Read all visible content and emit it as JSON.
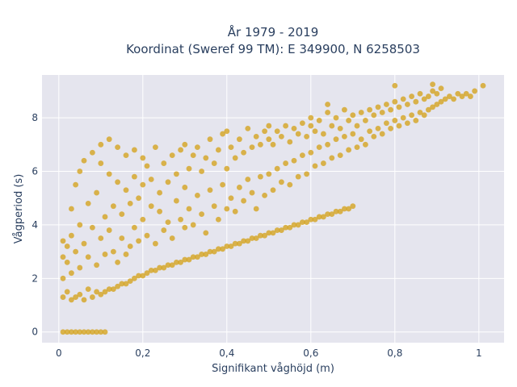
{
  "chart_data": {
    "type": "scatter",
    "title": [
      "År 1979 - 2019",
      "Koordinat (Sweref 99 TM): E 349900, N 6258503"
    ],
    "xlabel": "Signifikant våghöjd (m)",
    "ylabel": "Vågperiod (s)",
    "xlim": [
      -0.04,
      1.06
    ],
    "ylim": [
      -0.4,
      9.6
    ],
    "xticks": [
      0,
      0.2,
      0.4,
      0.6,
      0.8,
      1
    ],
    "xtick_labels": [
      "0",
      "0,2",
      "0,4",
      "0,6",
      "0,8",
      "1"
    ],
    "yticks": [
      0,
      2,
      4,
      6,
      8
    ],
    "ytick_labels": [
      "0",
      "2",
      "4",
      "6",
      "8"
    ],
    "grid": true,
    "point_color": "#D4A421",
    "plot_bg_color": "#E5E5EE",
    "series": [
      {
        "values": [
          [
            0.01,
            0.0
          ],
          [
            0.02,
            0.0
          ],
          [
            0.03,
            0.0
          ],
          [
            0.04,
            0.0
          ],
          [
            0.05,
            0.0
          ],
          [
            0.06,
            0.0
          ],
          [
            0.07,
            0.0
          ],
          [
            0.08,
            0.0
          ],
          [
            0.09,
            0.0
          ],
          [
            0.1,
            0.0
          ],
          [
            0.11,
            0.0
          ],
          [
            0.01,
            1.3
          ],
          [
            0.01,
            2.0
          ],
          [
            0.01,
            2.8
          ],
          [
            0.01,
            3.4
          ],
          [
            0.02,
            1.5
          ],
          [
            0.02,
            2.6
          ],
          [
            0.02,
            3.2
          ],
          [
            0.03,
            1.2
          ],
          [
            0.03,
            2.2
          ],
          [
            0.03,
            3.6
          ],
          [
            0.03,
            4.6
          ],
          [
            0.04,
            1.3
          ],
          [
            0.04,
            3.0
          ],
          [
            0.04,
            5.5
          ],
          [
            0.05,
            1.4
          ],
          [
            0.05,
            2.4
          ],
          [
            0.05,
            4.0
          ],
          [
            0.05,
            6.0
          ],
          [
            0.06,
            1.2
          ],
          [
            0.06,
            3.3
          ],
          [
            0.06,
            6.4
          ],
          [
            0.07,
            1.6
          ],
          [
            0.07,
            2.8
          ],
          [
            0.07,
            4.8
          ],
          [
            0.08,
            1.3
          ],
          [
            0.08,
            3.9
          ],
          [
            0.08,
            6.7
          ],
          [
            0.09,
            1.5
          ],
          [
            0.09,
            2.5
          ],
          [
            0.09,
            5.2
          ],
          [
            0.1,
            1.4
          ],
          [
            0.1,
            3.5
          ],
          [
            0.1,
            6.3
          ],
          [
            0.1,
            7.0
          ],
          [
            0.11,
            1.5
          ],
          [
            0.11,
            2.9
          ],
          [
            0.11,
            4.3
          ],
          [
            0.12,
            1.6
          ],
          [
            0.12,
            3.8
          ],
          [
            0.12,
            5.9
          ],
          [
            0.12,
            7.2
          ],
          [
            0.13,
            1.6
          ],
          [
            0.13,
            3.0
          ],
          [
            0.13,
            4.7
          ],
          [
            0.14,
            1.7
          ],
          [
            0.14,
            2.6
          ],
          [
            0.14,
            5.6
          ],
          [
            0.14,
            6.9
          ],
          [
            0.15,
            1.8
          ],
          [
            0.15,
            3.5
          ],
          [
            0.15,
            4.4
          ],
          [
            0.16,
            1.8
          ],
          [
            0.16,
            2.9
          ],
          [
            0.16,
            5.3
          ],
          [
            0.16,
            6.6
          ],
          [
            0.17,
            1.9
          ],
          [
            0.17,
            3.2
          ],
          [
            0.17,
            4.8
          ],
          [
            0.18,
            2.0
          ],
          [
            0.18,
            3.9
          ],
          [
            0.18,
            5.8
          ],
          [
            0.18,
            6.8
          ],
          [
            0.19,
            2.1
          ],
          [
            0.19,
            3.4
          ],
          [
            0.19,
            5.0
          ],
          [
            0.2,
            2.1
          ],
          [
            0.2,
            4.2
          ],
          [
            0.2,
            5.5
          ],
          [
            0.2,
            6.5
          ],
          [
            0.21,
            2.2
          ],
          [
            0.21,
            3.6
          ],
          [
            0.21,
            6.2
          ],
          [
            0.22,
            2.3
          ],
          [
            0.22,
            4.7
          ],
          [
            0.22,
            5.7
          ],
          [
            0.23,
            2.3
          ],
          [
            0.23,
            3.3
          ],
          [
            0.23,
            6.9
          ],
          [
            0.24,
            2.4
          ],
          [
            0.24,
            4.5
          ],
          [
            0.24,
            5.2
          ],
          [
            0.25,
            2.4
          ],
          [
            0.25,
            3.8
          ],
          [
            0.25,
            6.3
          ],
          [
            0.26,
            2.5
          ],
          [
            0.26,
            4.1
          ],
          [
            0.26,
            5.6
          ],
          [
            0.27,
            2.5
          ],
          [
            0.27,
            3.5
          ],
          [
            0.27,
            6.6
          ],
          [
            0.28,
            2.6
          ],
          [
            0.28,
            4.9
          ],
          [
            0.28,
            5.9
          ],
          [
            0.29,
            2.6
          ],
          [
            0.29,
            4.2
          ],
          [
            0.29,
            6.8
          ],
          [
            0.3,
            2.7
          ],
          [
            0.3,
            3.9
          ],
          [
            0.3,
            5.4
          ],
          [
            0.3,
            7.0
          ],
          [
            0.31,
            2.7
          ],
          [
            0.31,
            4.6
          ],
          [
            0.31,
            6.1
          ],
          [
            0.32,
            2.8
          ],
          [
            0.32,
            4.0
          ],
          [
            0.32,
            6.6
          ],
          [
            0.33,
            2.8
          ],
          [
            0.33,
            5.1
          ],
          [
            0.33,
            6.9
          ],
          [
            0.34,
            2.9
          ],
          [
            0.34,
            4.4
          ],
          [
            0.34,
            6.0
          ],
          [
            0.35,
            2.9
          ],
          [
            0.35,
            3.7
          ],
          [
            0.35,
            6.5
          ],
          [
            0.36,
            3.0
          ],
          [
            0.36,
            5.3
          ],
          [
            0.36,
            7.2
          ],
          [
            0.37,
            3.0
          ],
          [
            0.37,
            4.7
          ],
          [
            0.37,
            6.3
          ],
          [
            0.38,
            3.1
          ],
          [
            0.38,
            4.2
          ],
          [
            0.38,
            6.8
          ],
          [
            0.39,
            3.1
          ],
          [
            0.39,
            5.5
          ],
          [
            0.39,
            7.4
          ],
          [
            0.4,
            3.2
          ],
          [
            0.4,
            4.6
          ],
          [
            0.4,
            6.1
          ],
          [
            0.4,
            7.5
          ],
          [
            0.41,
            3.2
          ],
          [
            0.41,
            5.0
          ],
          [
            0.41,
            6.9
          ],
          [
            0.42,
            3.3
          ],
          [
            0.42,
            4.5
          ],
          [
            0.42,
            6.5
          ],
          [
            0.43,
            3.3
          ],
          [
            0.43,
            5.4
          ],
          [
            0.43,
            7.2
          ],
          [
            0.44,
            3.4
          ],
          [
            0.44,
            4.9
          ],
          [
            0.44,
            6.7
          ],
          [
            0.45,
            3.4
          ],
          [
            0.45,
            5.7
          ],
          [
            0.45,
            7.6
          ],
          [
            0.46,
            3.5
          ],
          [
            0.46,
            5.2
          ],
          [
            0.46,
            6.9
          ],
          [
            0.47,
            3.5
          ],
          [
            0.47,
            4.6
          ],
          [
            0.47,
            7.3
          ],
          [
            0.48,
            3.6
          ],
          [
            0.48,
            5.8
          ],
          [
            0.48,
            7.0
          ],
          [
            0.49,
            3.6
          ],
          [
            0.49,
            5.1
          ],
          [
            0.49,
            7.5
          ],
          [
            0.5,
            3.7
          ],
          [
            0.5,
            5.9
          ],
          [
            0.5,
            7.2
          ],
          [
            0.5,
            7.7
          ],
          [
            0.51,
            3.7
          ],
          [
            0.51,
            5.3
          ],
          [
            0.51,
            7.0
          ],
          [
            0.52,
            3.8
          ],
          [
            0.52,
            6.1
          ],
          [
            0.52,
            7.5
          ],
          [
            0.53,
            3.8
          ],
          [
            0.53,
            5.6
          ],
          [
            0.53,
            7.3
          ],
          [
            0.54,
            3.9
          ],
          [
            0.54,
            6.3
          ],
          [
            0.54,
            7.7
          ],
          [
            0.55,
            3.9
          ],
          [
            0.55,
            5.5
          ],
          [
            0.55,
            7.1
          ],
          [
            0.56,
            4.0
          ],
          [
            0.56,
            6.4
          ],
          [
            0.56,
            7.6
          ],
          [
            0.57,
            4.0
          ],
          [
            0.57,
            5.8
          ],
          [
            0.57,
            7.4
          ],
          [
            0.58,
            4.1
          ],
          [
            0.58,
            6.6
          ],
          [
            0.58,
            7.8
          ],
          [
            0.59,
            4.1
          ],
          [
            0.59,
            5.9
          ],
          [
            0.59,
            7.3
          ],
          [
            0.6,
            4.2
          ],
          [
            0.6,
            6.7
          ],
          [
            0.6,
            7.7
          ],
          [
            0.6,
            8.0
          ],
          [
            0.61,
            4.2
          ],
          [
            0.61,
            6.2
          ],
          [
            0.61,
            7.5
          ],
          [
            0.62,
            4.3
          ],
          [
            0.62,
            6.9
          ],
          [
            0.62,
            7.9
          ],
          [
            0.63,
            4.3
          ],
          [
            0.63,
            6.3
          ],
          [
            0.63,
            7.4
          ],
          [
            0.64,
            4.4
          ],
          [
            0.64,
            7.0
          ],
          [
            0.64,
            8.2
          ],
          [
            0.65,
            4.4
          ],
          [
            0.65,
            6.5
          ],
          [
            0.65,
            7.7
          ],
          [
            0.66,
            4.5
          ],
          [
            0.66,
            7.2
          ],
          [
            0.66,
            8.0
          ],
          [
            0.67,
            4.5
          ],
          [
            0.67,
            6.6
          ],
          [
            0.67,
            7.6
          ],
          [
            0.68,
            4.6
          ],
          [
            0.68,
            7.3
          ],
          [
            0.68,
            8.3
          ],
          [
            0.69,
            4.6
          ],
          [
            0.69,
            6.8
          ],
          [
            0.69,
            7.9
          ],
          [
            0.7,
            4.7
          ],
          [
            0.7,
            7.4
          ],
          [
            0.7,
            8.1
          ],
          [
            0.71,
            6.9
          ],
          [
            0.71,
            7.7
          ],
          [
            0.72,
            7.2
          ],
          [
            0.72,
            8.2
          ],
          [
            0.73,
            7.0
          ],
          [
            0.73,
            7.9
          ],
          [
            0.74,
            7.5
          ],
          [
            0.74,
            8.3
          ],
          [
            0.75,
            7.3
          ],
          [
            0.75,
            8.1
          ],
          [
            0.76,
            7.6
          ],
          [
            0.76,
            8.4
          ],
          [
            0.77,
            7.4
          ],
          [
            0.77,
            8.2
          ],
          [
            0.78,
            7.8
          ],
          [
            0.78,
            8.5
          ],
          [
            0.79,
            7.6
          ],
          [
            0.79,
            8.3
          ],
          [
            0.8,
            7.9
          ],
          [
            0.8,
            8.6
          ],
          [
            0.81,
            7.7
          ],
          [
            0.81,
            8.4
          ],
          [
            0.82,
            8.0
          ],
          [
            0.82,
            8.7
          ],
          [
            0.83,
            7.8
          ],
          [
            0.83,
            8.5
          ],
          [
            0.84,
            8.1
          ],
          [
            0.84,
            8.8
          ],
          [
            0.85,
            7.9
          ],
          [
            0.85,
            8.6
          ],
          [
            0.86,
            8.2
          ],
          [
            0.86,
            8.9
          ],
          [
            0.87,
            8.1
          ],
          [
            0.87,
            8.7
          ],
          [
            0.88,
            8.3
          ],
          [
            0.88,
            8.8
          ],
          [
            0.89,
            8.4
          ],
          [
            0.89,
            9.0
          ],
          [
            0.9,
            8.5
          ],
          [
            0.9,
            8.9
          ],
          [
            0.91,
            8.6
          ],
          [
            0.91,
            9.1
          ],
          [
            0.92,
            8.7
          ],
          [
            0.93,
            8.8
          ],
          [
            0.94,
            8.7
          ],
          [
            0.95,
            8.9
          ],
          [
            0.96,
            8.8
          ],
          [
            0.97,
            8.9
          ],
          [
            0.98,
            8.8
          ],
          [
            0.99,
            9.0
          ],
          [
            1.01,
            9.2
          ],
          [
            0.8,
            9.2
          ],
          [
            0.89,
            9.25
          ],
          [
            0.64,
            8.5
          ]
        ]
      }
    ]
  }
}
